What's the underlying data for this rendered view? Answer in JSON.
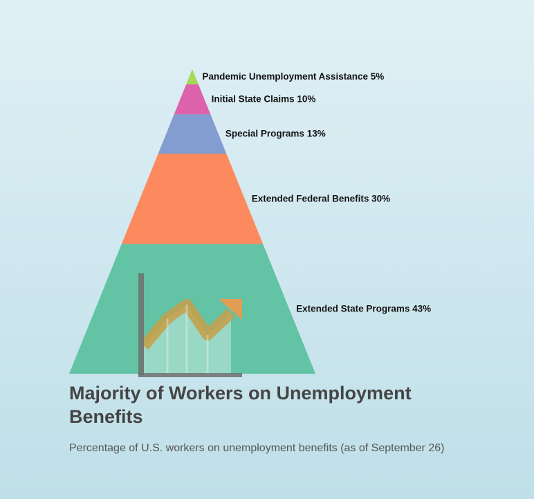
{
  "chart_data": {
    "type": "funnel",
    "title": "Majority of Workers on Unemployment Benefits",
    "subtitle": "Percentage of U.S. workers on unemployment benefits (as of September 26)",
    "unit": "%",
    "segments": [
      {
        "label": "Pandemic Unemployment Assistance",
        "value": 5,
        "color": "#a3d955"
      },
      {
        "label": "Initial State Claims",
        "value": 10,
        "color": "#dc63ab"
      },
      {
        "label": "Special Programs",
        "value": 13,
        "color": "#839dd1"
      },
      {
        "label": "Extended Federal Benefits",
        "value": 30,
        "color": "#fd8a5e"
      },
      {
        "label": "Extended State Programs",
        "value": 43,
        "color": "#62c3a5"
      }
    ]
  },
  "decoration": {
    "icon": "trending-chart-icon"
  }
}
